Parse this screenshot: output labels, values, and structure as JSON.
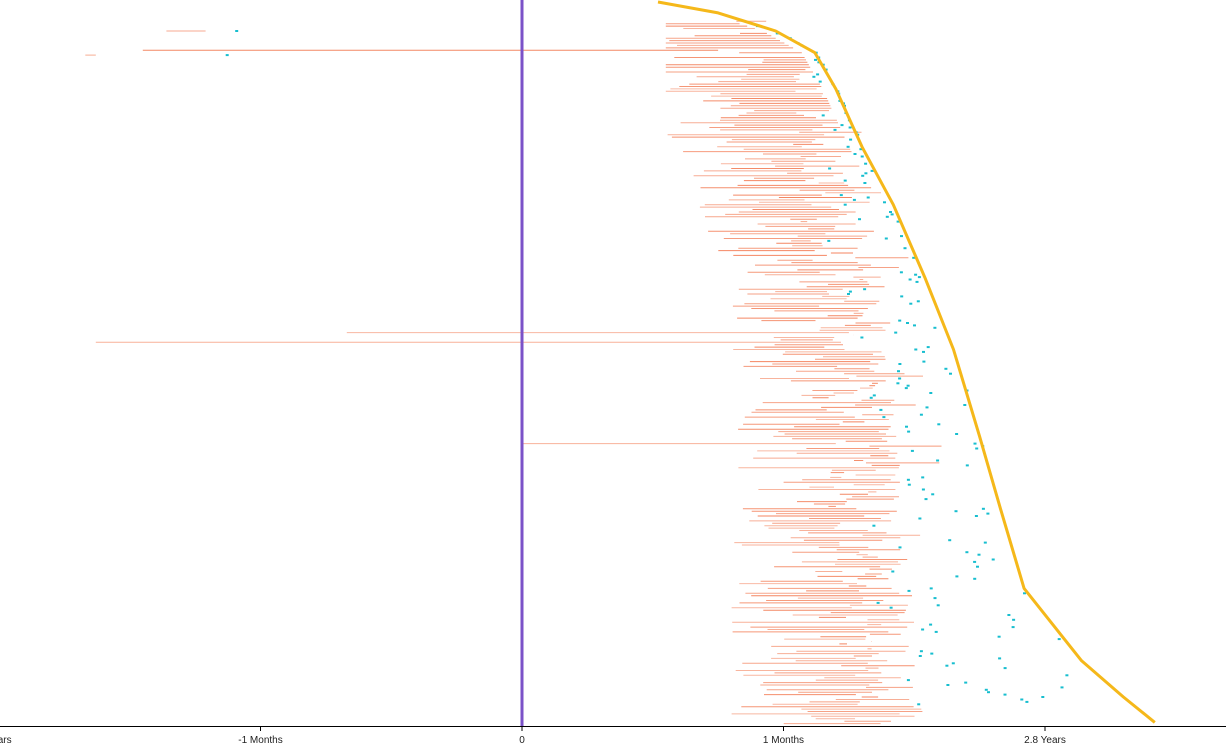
{
  "chart_data": {
    "type": "timeline",
    "xlabel": "",
    "ylabel": "",
    "grid": false,
    "x_ticks": [
      {
        "label": "Years",
        "value": -2
      },
      {
        "label": "-1 Months",
        "value": -1
      },
      {
        "label": "0",
        "value": 0
      },
      {
        "label": "1 Months",
        "value": 1
      },
      {
        "label": "2.8 Years",
        "value": 2
      }
    ],
    "xlim": [
      -2,
      2.7
    ],
    "row_count": 300,
    "reference_line": {
      "x": 0,
      "color": "#7b52c8"
    },
    "boundary_curve": {
      "color": "#f5b81a",
      "points": [
        [
          0.52,
          0
        ],
        [
          0.75,
          0.015
        ],
        [
          0.97,
          0.04
        ],
        [
          1.12,
          0.07
        ],
        [
          1.2,
          0.12
        ],
        [
          1.3,
          0.2
        ],
        [
          1.42,
          0.28
        ],
        [
          1.54,
          0.38
        ],
        [
          1.65,
          0.48
        ],
        [
          1.75,
          0.6
        ],
        [
          1.83,
          0.7
        ],
        [
          1.92,
          0.81
        ],
        [
          2.03,
          0.86
        ],
        [
          2.14,
          0.91
        ],
        [
          2.3,
          0.96
        ],
        [
          2.42,
          0.995
        ]
      ]
    },
    "series": [
      {
        "name": "",
        "color": "#f4845f",
        "mark": "interval"
      },
      {
        "name": "",
        "color": "#17becf",
        "mark": "dash"
      },
      {
        "name": "",
        "color": "#f5b81a",
        "mark": "boundary"
      }
    ],
    "outliers": [
      {
        "row": 12,
        "start": -1.36,
        "end": -1.21
      },
      {
        "row": 20,
        "start": -1.45,
        "end": 0.75
      },
      {
        "row": 22,
        "start": -1.67,
        "end": -1.63
      },
      {
        "row": 137,
        "start": -0.67,
        "end": 1.25
      },
      {
        "row": 141,
        "start": -1.63,
        "end": 1.22
      },
      {
        "row": 183,
        "start": 0.0,
        "end": 1.2
      }
    ]
  }
}
